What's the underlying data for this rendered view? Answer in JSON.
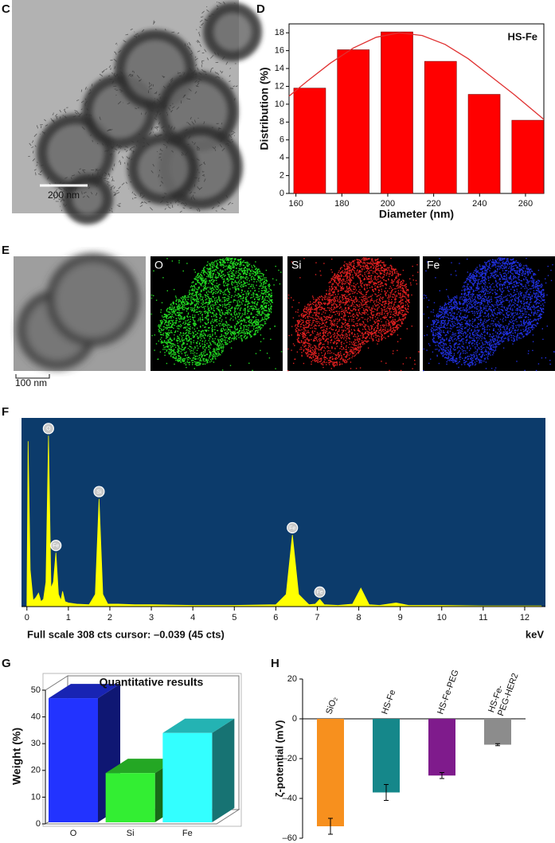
{
  "panel_labels": [
    "C",
    "D",
    "E",
    "F",
    "G",
    "H"
  ],
  "tem_image": {
    "scale_bar": "200 nm"
  },
  "eds_maps": {
    "scale_bar": "100 nm",
    "labels": [
      "O",
      "Si",
      "Fe"
    ],
    "colors": [
      "#22dd22",
      "#e02020",
      "#2030e0"
    ]
  },
  "chart_data": [
    {
      "type": "bar",
      "annotation": "HS-Fe",
      "x_label": "Diameter (nm)",
      "y_label": "Distribution (%)",
      "x": [
        166,
        185,
        204,
        223,
        242,
        261
      ],
      "values": [
        11.8,
        16.1,
        18.1,
        14.8,
        11.1,
        8.2
      ],
      "color": "#ff0000",
      "fit": {
        "x": [
          157,
          165,
          175,
          185,
          195,
          205,
          215,
          225,
          235,
          245,
          255,
          268
        ],
        "values": [
          10.9,
          12.6,
          14.6,
          16.3,
          17.5,
          18.0,
          17.7,
          16.7,
          15.1,
          13.1,
          11.1,
          8.3
        ],
        "color": "#e03030"
      },
      "xlim": [
        157,
        268
      ],
      "xticks": [
        160,
        180,
        200,
        220,
        240,
        260
      ],
      "ylim": [
        0,
        19
      ],
      "yticks": [
        0,
        2,
        4,
        6,
        8,
        10,
        12,
        14,
        16,
        18
      ]
    },
    {
      "type": "area",
      "footer": "Full scale 308 cts cursor: –0.039 (45 cts)",
      "x_label": "keV",
      "color": "#ffff00",
      "background": "#0c3b6b",
      "x": [
        0,
        0.03,
        0.08,
        0.15,
        0.22,
        0.28,
        0.34,
        0.4,
        0.46,
        0.52,
        0.58,
        0.64,
        0.7,
        0.76,
        0.82,
        0.86,
        0.92,
        1.0,
        1.2,
        1.5,
        1.65,
        1.74,
        1.83,
        1.95,
        2.2,
        2.6,
        3.0,
        4.0,
        5.0,
        6.0,
        6.25,
        6.4,
        6.55,
        6.8,
        6.95,
        7.06,
        7.17,
        7.5,
        7.85,
        8.05,
        8.25,
        8.5,
        8.9,
        9.2,
        10,
        11,
        12,
        12.4
      ],
      "values": [
        5,
        270,
        60,
        10,
        15,
        22,
        8,
        12,
        40,
        279,
        30,
        40,
        88,
        20,
        10,
        25,
        8,
        6,
        4,
        3,
        20,
        176,
        20,
        4,
        4,
        3,
        3,
        2,
        2,
        3,
        20,
        117,
        20,
        3,
        4,
        12,
        3,
        2,
        4,
        30,
        3,
        2,
        6,
        2,
        2,
        1,
        1,
        1
      ],
      "annotations": [
        {
          "text": "O",
          "x": 0.52
        },
        {
          "text": "Fe",
          "x": 0.7
        },
        {
          "text": "Si",
          "x": 1.74
        },
        {
          "text": "Fe",
          "x": 6.4
        },
        {
          "text": "Fe",
          "x": 7.06
        }
      ],
      "xlim": [
        -0.13,
        12.5
      ],
      "xticks": [
        0,
        1,
        2,
        3,
        4,
        5,
        6,
        7,
        8,
        9,
        10,
        11,
        12
      ],
      "ylim": [
        0,
        308
      ]
    },
    {
      "type": "bar3d",
      "title": "Quantitative results",
      "y_label": "Weight (%)",
      "categories": [
        "O",
        "Si",
        "Fe"
      ],
      "values": [
        47,
        19,
        34
      ],
      "colors": [
        "#2233ff",
        "#33ee33",
        "#33ffff"
      ],
      "ylim": [
        0,
        50
      ],
      "yticks": [
        0,
        10,
        20,
        30,
        40,
        50
      ]
    },
    {
      "type": "bar",
      "y_label": "ζ-potential (mV)",
      "categories": [
        "SiO₂",
        "HS-Fe",
        "HS-Fe-PEG",
        "HS-Fe-PEG-HER2"
      ],
      "values": [
        -54,
        -37,
        -28.5,
        -13
      ],
      "errors": [
        4,
        4,
        1.5,
        0.5
      ],
      "colors": [
        "#f7901e",
        "#15878a",
        "#7f1b8c",
        "#8c8c8c"
      ],
      "ylim": [
        -60,
        20
      ],
      "yticks": [
        {
          "value": -60,
          "label": "–60"
        },
        {
          "value": -40,
          "label": "–40"
        },
        {
          "value": -20,
          "label": "–20"
        },
        0,
        20
      ]
    }
  ]
}
